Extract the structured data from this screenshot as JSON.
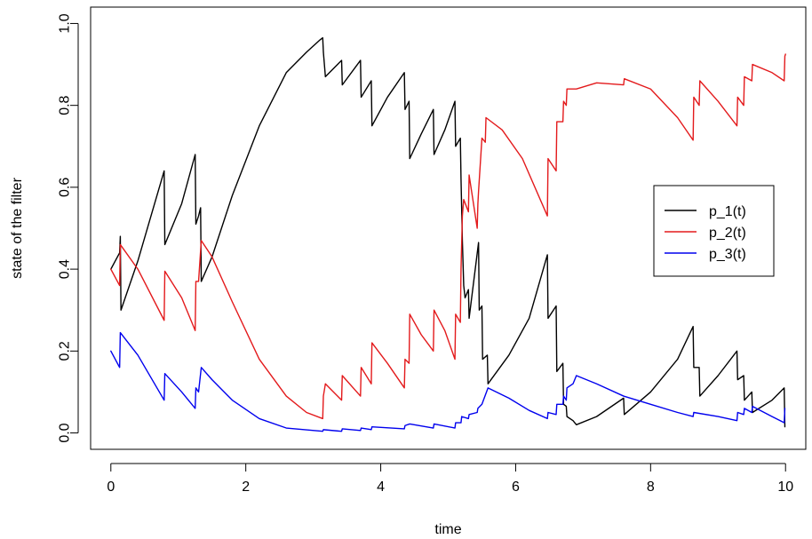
{
  "chart_data": {
    "type": "line",
    "title": "",
    "xlabel": "time",
    "ylabel": "state of the filter",
    "xlim": [
      -0.3,
      10.3
    ],
    "ylim": [
      -0.04,
      1.04
    ],
    "xticks": [
      0,
      2,
      4,
      6,
      8,
      10
    ],
    "yticks": [
      0.0,
      0.2,
      0.4,
      0.6,
      0.8,
      1.0
    ],
    "xtick_labels": [
      "0",
      "2",
      "4",
      "6",
      "8",
      "10"
    ],
    "ytick_labels": [
      "0.0",
      "0.2",
      "0.4",
      "0.6",
      "0.8",
      "1.0"
    ],
    "grid": false,
    "legend_position": "right",
    "series": [
      {
        "name": "p_1(t)",
        "color": "#000000",
        "points": [
          [
            0.0,
            0.4
          ],
          [
            0.13,
            0.44
          ],
          [
            0.14,
            0.48
          ],
          [
            0.15,
            0.3
          ],
          [
            0.4,
            0.42
          ],
          [
            0.79,
            0.64
          ],
          [
            0.8,
            0.46
          ],
          [
            1.05,
            0.56
          ],
          [
            1.25,
            0.68
          ],
          [
            1.26,
            0.51
          ],
          [
            1.3,
            0.53
          ],
          [
            1.33,
            0.55
          ],
          [
            1.34,
            0.37
          ],
          [
            1.5,
            0.43
          ],
          [
            1.8,
            0.58
          ],
          [
            2.2,
            0.75
          ],
          [
            2.6,
            0.88
          ],
          [
            2.9,
            0.93
          ],
          [
            3.1,
            0.96
          ],
          [
            3.14,
            0.965
          ],
          [
            3.15,
            0.93
          ],
          [
            3.18,
            0.87
          ],
          [
            3.42,
            0.91
          ],
          [
            3.43,
            0.85
          ],
          [
            3.7,
            0.91
          ],
          [
            3.71,
            0.82
          ],
          [
            3.86,
            0.86
          ],
          [
            3.87,
            0.75
          ],
          [
            4.1,
            0.82
          ],
          [
            4.35,
            0.88
          ],
          [
            4.36,
            0.79
          ],
          [
            4.42,
            0.81
          ],
          [
            4.43,
            0.67
          ],
          [
            4.6,
            0.73
          ],
          [
            4.78,
            0.79
          ],
          [
            4.79,
            0.68
          ],
          [
            4.95,
            0.74
          ],
          [
            5.1,
            0.81
          ],
          [
            5.11,
            0.7
          ],
          [
            5.18,
            0.72
          ],
          [
            5.19,
            0.62
          ],
          [
            5.21,
            0.47
          ],
          [
            5.23,
            0.36
          ],
          [
            5.25,
            0.33
          ],
          [
            5.3,
            0.35
          ],
          [
            5.31,
            0.28
          ],
          [
            5.45,
            0.465
          ],
          [
            5.46,
            0.3
          ],
          [
            5.5,
            0.31
          ],
          [
            5.51,
            0.18
          ],
          [
            5.58,
            0.19
          ],
          [
            5.59,
            0.12
          ],
          [
            5.9,
            0.19
          ],
          [
            6.2,
            0.28
          ],
          [
            6.47,
            0.435
          ],
          [
            6.48,
            0.28
          ],
          [
            6.6,
            0.31
          ],
          [
            6.61,
            0.15
          ],
          [
            6.7,
            0.17
          ],
          [
            6.71,
            0.07
          ],
          [
            6.75,
            0.065
          ],
          [
            6.76,
            0.04
          ],
          [
            6.85,
            0.03
          ],
          [
            6.9,
            0.02
          ],
          [
            7.2,
            0.04
          ],
          [
            7.6,
            0.085
          ],
          [
            7.61,
            0.045
          ],
          [
            8.0,
            0.1
          ],
          [
            8.4,
            0.18
          ],
          [
            8.63,
            0.26
          ],
          [
            8.64,
            0.16
          ],
          [
            8.72,
            0.16
          ],
          [
            8.73,
            0.09
          ],
          [
            9.0,
            0.14
          ],
          [
            9.28,
            0.2
          ],
          [
            9.29,
            0.13
          ],
          [
            9.38,
            0.14
          ],
          [
            9.39,
            0.08
          ],
          [
            9.5,
            0.1
          ],
          [
            9.51,
            0.05
          ],
          [
            9.8,
            0.08
          ],
          [
            9.98,
            0.11
          ],
          [
            9.99,
            0.015
          ]
        ]
      },
      {
        "name": "p_2(t)",
        "color": "#e31a1c",
        "points": [
          [
            0.0,
            0.4
          ],
          [
            0.13,
            0.36
          ],
          [
            0.14,
            0.46
          ],
          [
            0.4,
            0.4
          ],
          [
            0.79,
            0.275
          ],
          [
            0.8,
            0.395
          ],
          [
            1.05,
            0.33
          ],
          [
            1.25,
            0.25
          ],
          [
            1.26,
            0.37
          ],
          [
            1.3,
            0.37
          ],
          [
            1.34,
            0.47
          ],
          [
            1.5,
            0.43
          ],
          [
            1.8,
            0.32
          ],
          [
            2.2,
            0.18
          ],
          [
            2.6,
            0.09
          ],
          [
            2.9,
            0.05
          ],
          [
            3.14,
            0.035
          ],
          [
            3.15,
            0.09
          ],
          [
            3.18,
            0.12
          ],
          [
            3.42,
            0.08
          ],
          [
            3.43,
            0.14
          ],
          [
            3.7,
            0.09
          ],
          [
            3.71,
            0.16
          ],
          [
            3.86,
            0.12
          ],
          [
            3.87,
            0.22
          ],
          [
            4.1,
            0.17
          ],
          [
            4.35,
            0.11
          ],
          [
            4.36,
            0.18
          ],
          [
            4.42,
            0.17
          ],
          [
            4.43,
            0.29
          ],
          [
            4.6,
            0.24
          ],
          [
            4.78,
            0.2
          ],
          [
            4.79,
            0.3
          ],
          [
            4.95,
            0.25
          ],
          [
            5.1,
            0.18
          ],
          [
            5.11,
            0.29
          ],
          [
            5.18,
            0.27
          ],
          [
            5.19,
            0.4
          ],
          [
            5.21,
            0.53
          ],
          [
            5.23,
            0.57
          ],
          [
            5.3,
            0.54
          ],
          [
            5.31,
            0.63
          ],
          [
            5.43,
            0.5
          ],
          [
            5.44,
            0.56
          ],
          [
            5.45,
            0.59
          ],
          [
            5.5,
            0.72
          ],
          [
            5.55,
            0.71
          ],
          [
            5.56,
            0.77
          ],
          [
            5.8,
            0.74
          ],
          [
            6.1,
            0.67
          ],
          [
            6.47,
            0.53
          ],
          [
            6.48,
            0.67
          ],
          [
            6.6,
            0.64
          ],
          [
            6.61,
            0.76
          ],
          [
            6.7,
            0.76
          ],
          [
            6.71,
            0.81
          ],
          [
            6.75,
            0.8
          ],
          [
            6.76,
            0.84
          ],
          [
            6.9,
            0.84
          ],
          [
            7.2,
            0.855
          ],
          [
            7.6,
            0.85
          ],
          [
            7.61,
            0.865
          ],
          [
            8.0,
            0.84
          ],
          [
            8.4,
            0.77
          ],
          [
            8.63,
            0.715
          ],
          [
            8.64,
            0.82
          ],
          [
            8.72,
            0.8
          ],
          [
            8.73,
            0.86
          ],
          [
            9.0,
            0.81
          ],
          [
            9.28,
            0.75
          ],
          [
            9.29,
            0.82
          ],
          [
            9.38,
            0.8
          ],
          [
            9.39,
            0.87
          ],
          [
            9.5,
            0.86
          ],
          [
            9.51,
            0.9
          ],
          [
            9.8,
            0.88
          ],
          [
            9.98,
            0.86
          ],
          [
            9.99,
            0.92
          ],
          [
            10.0,
            0.925
          ]
        ]
      },
      {
        "name": "p_3(t)",
        "color": "#0000ee",
        "points": [
          [
            0.0,
            0.2
          ],
          [
            0.13,
            0.16
          ],
          [
            0.14,
            0.245
          ],
          [
            0.4,
            0.19
          ],
          [
            0.79,
            0.08
          ],
          [
            0.8,
            0.145
          ],
          [
            1.05,
            0.1
          ],
          [
            1.25,
            0.06
          ],
          [
            1.26,
            0.11
          ],
          [
            1.3,
            0.1
          ],
          [
            1.34,
            0.16
          ],
          [
            1.5,
            0.13
          ],
          [
            1.8,
            0.08
          ],
          [
            2.2,
            0.035
          ],
          [
            2.6,
            0.012
          ],
          [
            3.14,
            0.004
          ],
          [
            3.15,
            0.008
          ],
          [
            3.42,
            0.004
          ],
          [
            3.43,
            0.01
          ],
          [
            3.7,
            0.006
          ],
          [
            3.71,
            0.012
          ],
          [
            3.86,
            0.008
          ],
          [
            3.87,
            0.015
          ],
          [
            4.35,
            0.01
          ],
          [
            4.36,
            0.018
          ],
          [
            4.43,
            0.022
          ],
          [
            4.78,
            0.012
          ],
          [
            4.79,
            0.022
          ],
          [
            5.1,
            0.012
          ],
          [
            5.11,
            0.025
          ],
          [
            5.19,
            0.025
          ],
          [
            5.2,
            0.04
          ],
          [
            5.3,
            0.035
          ],
          [
            5.31,
            0.045
          ],
          [
            5.43,
            0.05
          ],
          [
            5.44,
            0.06
          ],
          [
            5.5,
            0.07
          ],
          [
            5.59,
            0.11
          ],
          [
            5.9,
            0.085
          ],
          [
            6.2,
            0.055
          ],
          [
            6.47,
            0.035
          ],
          [
            6.48,
            0.05
          ],
          [
            6.6,
            0.045
          ],
          [
            6.61,
            0.07
          ],
          [
            6.7,
            0.07
          ],
          [
            6.71,
            0.09
          ],
          [
            6.75,
            0.08
          ],
          [
            6.76,
            0.11
          ],
          [
            6.85,
            0.12
          ],
          [
            6.9,
            0.14
          ],
          [
            7.2,
            0.12
          ],
          [
            7.6,
            0.09
          ],
          [
            8.0,
            0.07
          ],
          [
            8.4,
            0.05
          ],
          [
            8.63,
            0.04
          ],
          [
            8.64,
            0.05
          ],
          [
            9.0,
            0.04
          ],
          [
            9.28,
            0.03
          ],
          [
            9.29,
            0.05
          ],
          [
            9.38,
            0.045
          ],
          [
            9.39,
            0.06
          ],
          [
            9.5,
            0.05
          ],
          [
            9.51,
            0.065
          ],
          [
            9.8,
            0.04
          ],
          [
            9.98,
            0.025
          ],
          [
            9.99,
            0.06
          ]
        ]
      }
    ]
  }
}
